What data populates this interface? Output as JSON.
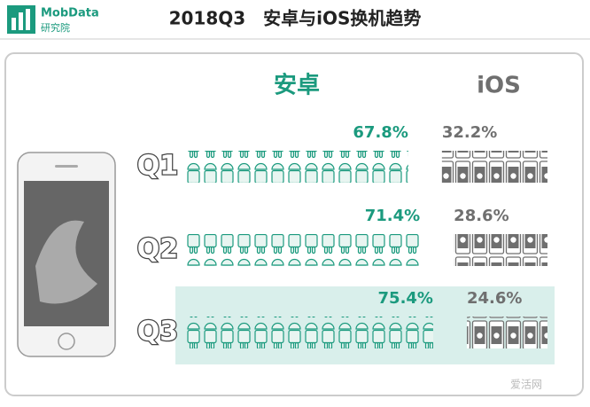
{
  "brand": {
    "name": "MobData",
    "sub": "研究院"
  },
  "watermark": "爱活网",
  "chart_data": {
    "type": "pictogram",
    "title": "2018Q3　安卓与iOS换机趋势",
    "categories": [
      "Q1",
      "Q2",
      "Q3"
    ],
    "series": [
      {
        "name": "安卓",
        "color": "#1b9a7e",
        "values": [
          67.8,
          71.4,
          75.4
        ],
        "value_labels": [
          "67.8%",
          "71.4%",
          "75.4%"
        ]
      },
      {
        "name": "iOS",
        "color": "#6f6f6f",
        "values": [
          32.2,
          28.6,
          24.6
        ],
        "value_labels": [
          "32.2%",
          "28.6%",
          "24.6%"
        ]
      }
    ]
  }
}
